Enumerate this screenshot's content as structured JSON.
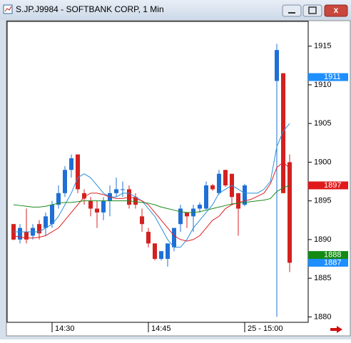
{
  "chart_data": {
    "type": "candlestick",
    "title": "S.JP.J9984 - SOFTBANK CORP, 1 Min",
    "categories": [
      null,
      null,
      null,
      null,
      null,
      null,
      "14:30",
      null,
      null,
      null,
      null,
      null,
      null,
      null,
      null,
      null,
      null,
      null,
      null,
      null,
      null,
      "14:45",
      null,
      null,
      null,
      null,
      null,
      null,
      null,
      null,
      null,
      null,
      null,
      null,
      null,
      null,
      "25 - 15:00",
      null,
      null,
      null,
      null,
      null,
      null,
      null
    ],
    "open": [
      1892,
      1890,
      1891,
      1890.5,
      1892,
      1891.5,
      1892,
      1894.5,
      1896,
      1899,
      1901,
      1896,
      1895,
      1894,
      1893.5,
      1895,
      1896,
      1896.5,
      1896.5,
      1895.5,
      1893,
      1891,
      1889.5,
      1887.5,
      1887.5,
      1889,
      1892,
      1893.5,
      1893,
      1894,
      1894,
      1897,
      1896,
      1899,
      1898.5,
      1896,
      1894.5,
      null,
      null,
      null,
      null,
      1910.5,
      1911.5,
      1900
    ],
    "high": [
      1892,
      1892,
      1894,
      1892,
      1892.5,
      1893.5,
      1895,
      1897,
      1899.5,
      1901,
      1901,
      1896.5,
      1895.5,
      1895,
      1895.5,
      1897,
      1898,
      1897.5,
      1897,
      1896,
      1894,
      1891.5,
      1889.5,
      1888.5,
      1889.5,
      1891.5,
      1894.5,
      1893.5,
      1894.5,
      1894.8,
      1897.5,
      1897.2,
      1899,
      1899,
      1898.5,
      1896,
      1897.2,
      null,
      null,
      null,
      null,
      1915.3,
      1911.5,
      1901
    ],
    "low": [
      1889.9,
      1889.5,
      1889.5,
      1890,
      1890,
      1890.5,
      1891.5,
      1894,
      1895.5,
      1898,
      1896,
      1894.5,
      1893,
      1891.5,
      1892.5,
      1893,
      1895.5,
      1895.5,
      1894,
      1894,
      1891,
      1889,
      1887.3,
      1887.3,
      1886.5,
      1888.5,
      1891,
      1891.5,
      1891,
      1893.5,
      1893.8,
      1896.3,
      1895.8,
      1896.8,
      1894.5,
      1890.5,
      1894.3,
      null,
      null,
      null,
      null,
      1880,
      1896,
      1885.8
    ],
    "close": [
      1890,
      1891.5,
      1890,
      1891.5,
      1890.8,
      1893,
      1894.5,
      1896,
      1899,
      1900.5,
      1896.5,
      1895.3,
      1894,
      1893.5,
      1895,
      1896,
      1896.5,
      1896.5,
      1894.5,
      1894.5,
      1892,
      1889.5,
      1887.5,
      1888.5,
      1889.5,
      1891.5,
      1894,
      1893,
      1894,
      1894.5,
      1897,
      1896.5,
      1898.5,
      1897,
      1895.5,
      1894,
      1897,
      null,
      null,
      null,
      null,
      1914.5,
      1896,
      1887
    ],
    "up_color": "#1f6fd6",
    "down_color": "#d42020",
    "lines": [
      {
        "color": "#2a8fd8",
        "values": [
          1891,
          1891,
          1891,
          1891,
          1891,
          1891.5,
          1892,
          1893,
          1894.5,
          1896,
          1898,
          1898.5,
          1898,
          1897,
          1896,
          1895.5,
          1895.5,
          1896,
          1896,
          1895.5,
          1895,
          1894,
          1893,
          1891.5,
          1890,
          1889,
          1889,
          1890,
          1891.5,
          1892.5,
          1893.5,
          1894.5,
          1896,
          1896.5,
          1897,
          1896.5,
          1896,
          1896,
          1896,
          1896.5,
          1897.5,
          1902,
          1904,
          1905
        ]
      },
      {
        "color": "#e02020",
        "values": [
          1890.5,
          1890.3,
          1890.2,
          1890.2,
          1890.3,
          1890.5,
          1891,
          1891.5,
          1892.5,
          1893.5,
          1894.5,
          1895.5,
          1896,
          1896,
          1895.8,
          1895.5,
          1895.3,
          1895.3,
          1895.5,
          1895.3,
          1895,
          1894.5,
          1893.5,
          1892.5,
          1891.5,
          1890.5,
          1890,
          1889.8,
          1890,
          1890.5,
          1891.5,
          1892.5,
          1893,
          1894,
          1894.5,
          1894.8,
          1895,
          1895.2,
          1895.6,
          1896,
          1897.2,
          1899.3,
          1900,
          1899.2
        ]
      },
      {
        "color": "#1a8a1a",
        "values": [
          1894.5,
          1894.4,
          1894.3,
          1894.2,
          1894.2,
          1894.3,
          1894.5,
          1894.7,
          1894.8,
          1894.8,
          1894.9,
          1895,
          1895,
          1895,
          1895,
          1895,
          1895,
          1895,
          1895,
          1894.9,
          1894.8,
          1894.7,
          1894.5,
          1894.2,
          1894,
          1893.8,
          1893.6,
          1893.5,
          1893.5,
          1893.6,
          1893.8,
          1894,
          1894.2,
          1894.4,
          1894.6,
          1894.7,
          1894.8,
          1894.9,
          1895,
          1895.1,
          1895.3,
          1896.2,
          1896.7,
          1897
        ]
      }
    ],
    "price_markers": [
      {
        "value": 1911,
        "color": "#1e8fff"
      },
      {
        "value": 1897,
        "color": "#e01a1a"
      },
      {
        "value": 1888,
        "color": "#138a13"
      },
      {
        "value": 1887,
        "color": "#1e8fff"
      }
    ],
    "ylim": [
      1879.3,
      1918.2
    ],
    "yticks": [
      1880,
      1885,
      1890,
      1895,
      1900,
      1905,
      1910,
      1915
    ]
  }
}
